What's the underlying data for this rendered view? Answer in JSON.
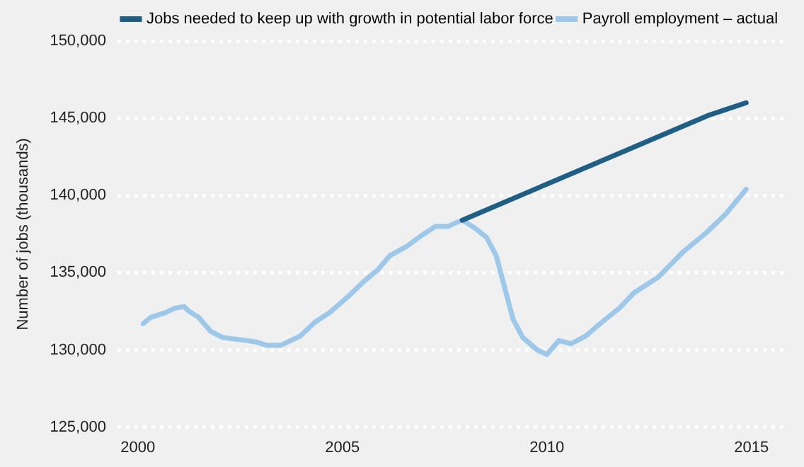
{
  "chart_data": {
    "type": "line",
    "ylabel": "Number of jobs (thousands)",
    "xlim": [
      1999.5,
      2015.8
    ],
    "xticks": [
      2000,
      2005,
      2010,
      2015
    ],
    "ylim": [
      125000,
      150000
    ],
    "yticks": [
      {
        "value": 125000,
        "label": "125,000"
      },
      {
        "value": 130000,
        "label": "130,000"
      },
      {
        "value": 135000,
        "label": "135,000"
      },
      {
        "value": 140000,
        "label": "140,000"
      },
      {
        "value": 145000,
        "label": "145,000"
      },
      {
        "value": 150000,
        "label": "150,000"
      }
    ],
    "grid": "y",
    "legend": "top left",
    "marker": "none",
    "line_style": "solid",
    "series": [
      {
        "name": "Jobs needed to keep up with growth in potential labor force",
        "color": "#1f5f85",
        "x": [
          2007.93,
          2013.96,
          2014.87
        ],
        "values": [
          138400,
          145200,
          146000
        ]
      },
      {
        "name": "Payroll employment – actual",
        "color": "#9dc8ea",
        "x": [
          2000.13,
          2000.31,
          2000.66,
          2000.9,
          2001.13,
          2001.25,
          2001.49,
          2001.78,
          2002.08,
          2002.67,
          2002.91,
          2003.14,
          2003.5,
          2003.97,
          2004.33,
          2004.68,
          2005.16,
          2005.51,
          2005.87,
          2006.16,
          2006.57,
          2006.93,
          2007.28,
          2007.58,
          2007.93,
          2008.23,
          2008.52,
          2008.76,
          2008.94,
          2009.17,
          2009.41,
          2009.76,
          2010.0,
          2010.29,
          2010.59,
          2010.95,
          2011.3,
          2011.77,
          2012.13,
          2012.72,
          2013.31,
          2013.9,
          2014.37,
          2014.87
        ],
        "values": [
          131700,
          132100,
          132400,
          132700,
          132800,
          132500,
          132100,
          131200,
          130800,
          130600,
          130500,
          130300,
          130300,
          130900,
          131800,
          132400,
          133500,
          134400,
          135200,
          136100,
          136700,
          137400,
          138000,
          138000,
          138400,
          137900,
          137300,
          136100,
          134300,
          132000,
          130800,
          130000,
          129700,
          130600,
          130400,
          130900,
          131700,
          132700,
          133700,
          134700,
          136300,
          137600,
          138800,
          140400
        ]
      }
    ]
  }
}
